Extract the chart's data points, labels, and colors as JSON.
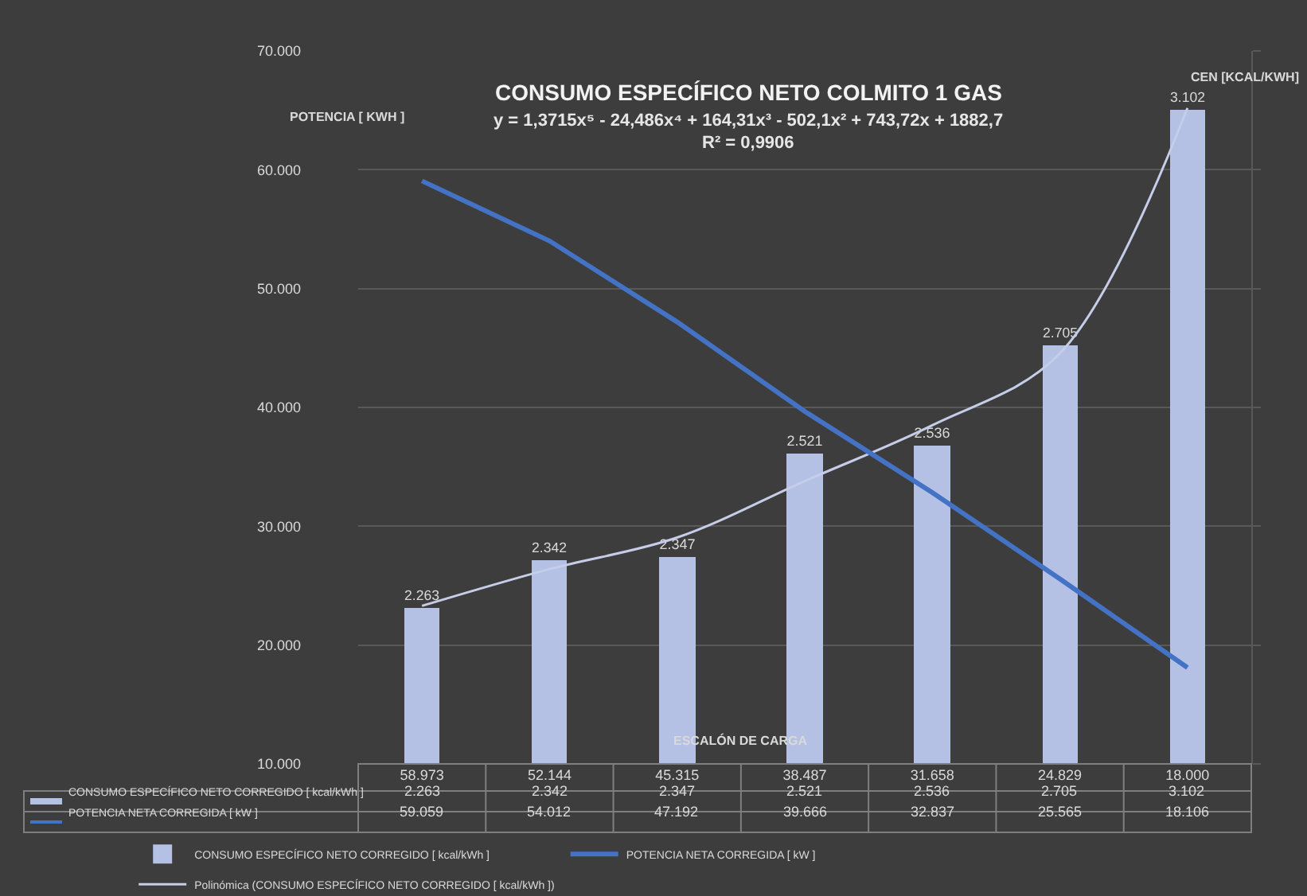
{
  "chart_data": {
    "type": "bar",
    "title": "CONSUMO ESPECÍFICO NETO COLMITO 1 GAS",
    "xlabel": "ESCALÓN DE CARGA",
    "ylabel": "POTENCIA [ KWH ]",
    "y2label": "CEN [KCAL/KWH]",
    "annotations": [
      "y = 1,3715x⁵ - 24,486x⁴ + 164,31x³ - 502,1x² + 743,72x + 1882,7",
      "R² = 0,9906"
    ],
    "categories": [
      "58.973",
      "52.144",
      "45.315",
      "38.487",
      "31.658",
      "24.829",
      "18.000"
    ],
    "series": [
      {
        "name": "CONSUMO ESPECÍFICO NETO CORREGIDO [ kcal/kWh ]",
        "axis": "y2",
        "color": "#b4c0e4",
        "values": [
          2263,
          2342,
          2347,
          2521,
          2536,
          2705,
          3102
        ],
        "value_labels": [
          "2.263",
          "2.342",
          "2.347",
          "2.521",
          "2.536",
          "2.705",
          "3.102"
        ]
      },
      {
        "name": "POTENCIA NETA CORREGIDA [ kW ]",
        "type": "line",
        "axis": "y",
        "color": "#4472c4",
        "values": [
          59059,
          54012,
          47192,
          39666,
          32837,
          25565,
          18106
        ],
        "value_labels": [
          "59.059",
          "54.012",
          "47.192",
          "39.666",
          "32.837",
          "25.565",
          "18.106"
        ]
      },
      {
        "name": "Polinómica (CONSUMO ESPECÍFICO NETO CORREGIDO [ kcal/kWh ])",
        "type": "line",
        "axis": "y2",
        "color": "#c5cde8",
        "x": [
          "58.973",
          "52.144",
          "45.315",
          "38.487",
          "31.658",
          "24.829",
          "18.000"
        ],
        "values": [
          2266,
          2328,
          2381,
          2476,
          2570,
          2691,
          3104
        ]
      }
    ],
    "ylim": [
      10000,
      70000
    ],
    "yticks": [
      {
        "value": 10000,
        "label": "10.000"
      },
      {
        "value": 20000,
        "label": "20.000"
      },
      {
        "value": 30000,
        "label": "30.000"
      },
      {
        "value": 40000,
        "label": "40.000"
      },
      {
        "value": 50000,
        "label": "50.000"
      },
      {
        "value": 60000,
        "label": "60.000"
      },
      {
        "value": 70000,
        "label": "70.000"
      }
    ],
    "y2lim": [
      2000,
      3200
    ],
    "y2ticks": [
      {
        "value": 2000,
        "label": null
      },
      {
        "value": 2200,
        "label": null
      },
      {
        "value": 2400,
        "label": null
      },
      {
        "value": 2600,
        "label": null
      },
      {
        "value": 2800,
        "label": null
      },
      {
        "value": 3000,
        "label": null
      },
      {
        "value": 3200,
        "label": null
      }
    ],
    "grid": "y",
    "legend": "bottom",
    "marker": "none",
    "line_style": "solid"
  }
}
